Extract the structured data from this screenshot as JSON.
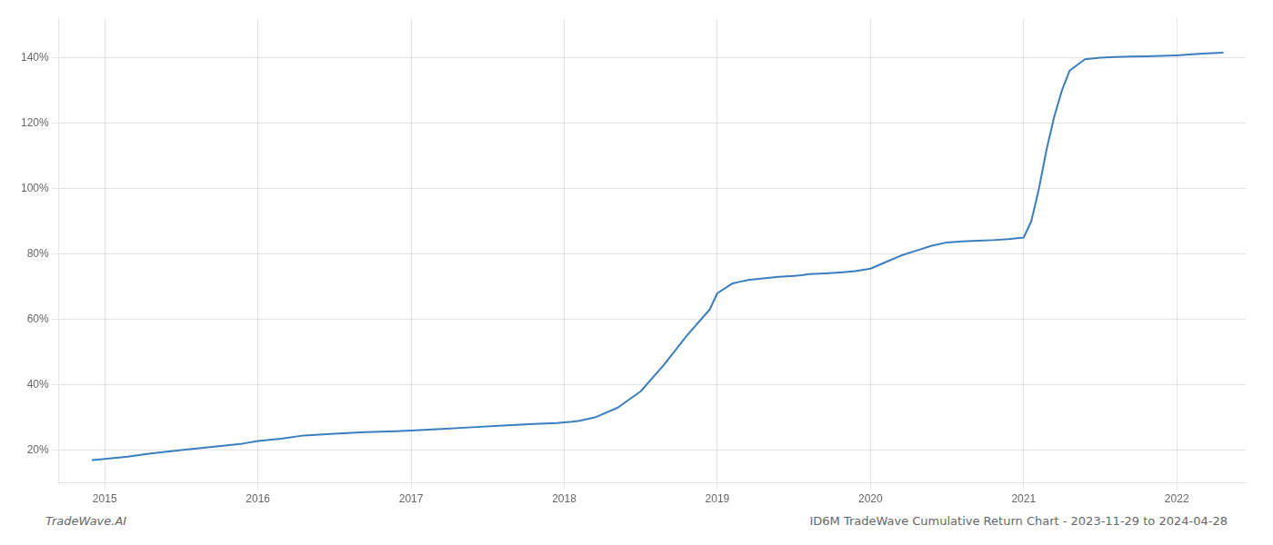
{
  "chart_data": {
    "type": "line",
    "annotations": [
      "TradeWave.AI",
      "ID6M TradeWave Cumulative Return Chart - 2023-11-29 to 2024-04-28"
    ],
    "x": [
      2014.92,
      2015.0,
      2015.15,
      2015.3,
      2015.5,
      2015.7,
      2015.9,
      2016.0,
      2016.15,
      2016.3,
      2016.5,
      2016.7,
      2016.9,
      2017.0,
      2017.2,
      2017.4,
      2017.6,
      2017.8,
      2017.95,
      2018.0,
      2018.05,
      2018.1,
      2018.2,
      2018.35,
      2018.5,
      2018.65,
      2018.8,
      2018.95,
      2019.0,
      2019.05,
      2019.1,
      2019.15,
      2019.2,
      2019.3,
      2019.4,
      2019.5,
      2019.55,
      2019.6,
      2019.7,
      2019.8,
      2019.9,
      2020.0,
      2020.1,
      2020.2,
      2020.3,
      2020.4,
      2020.5,
      2020.6,
      2020.7,
      2020.8,
      2020.9,
      2021.0,
      2021.05,
      2021.1,
      2021.15,
      2021.2,
      2021.25,
      2021.3,
      2021.4,
      2021.5,
      2021.6,
      2021.7,
      2021.8,
      2021.9,
      2022.0,
      2022.1,
      2022.2,
      2022.3
    ],
    "values": [
      17.0,
      17.3,
      18.0,
      19.0,
      20.0,
      21.0,
      22.0,
      22.8,
      23.5,
      24.5,
      25.0,
      25.5,
      25.8,
      26.0,
      26.5,
      27.0,
      27.5,
      28.0,
      28.3,
      28.5,
      28.7,
      29.0,
      30.0,
      33.0,
      38.0,
      46.0,
      55.0,
      63.0,
      68.0,
      69.5,
      71.0,
      71.5,
      72.0,
      72.5,
      73.0,
      73.3,
      73.5,
      73.8,
      74.0,
      74.3,
      74.7,
      75.5,
      77.5,
      79.5,
      81.0,
      82.5,
      83.5,
      83.8,
      84.0,
      84.2,
      84.5,
      85.0,
      90.0,
      100.0,
      112.0,
      122.0,
      130.0,
      136.0,
      139.5,
      140.0,
      140.2,
      140.3,
      140.4,
      140.5,
      140.7,
      141.0,
      141.3,
      141.5
    ],
    "color": "#3a7ebf",
    "xlim": [
      2014.7,
      2022.45
    ],
    "xticks": [
      2015,
      2016,
      2017,
      2018,
      2019,
      2020,
      2021,
      2022
    ],
    "ylim": [
      10,
      152
    ],
    "yticks": [
      {
        "value": 20,
        "label": "20%"
      },
      {
        "value": 40,
        "label": "40%"
      },
      {
        "value": 60,
        "label": "60%"
      },
      {
        "value": 80,
        "label": "80%"
      },
      {
        "value": 100,
        "label": "100%"
      },
      {
        "value": 120,
        "label": "120%"
      },
      {
        "value": 140,
        "label": "140%"
      }
    ],
    "grid": true
  }
}
